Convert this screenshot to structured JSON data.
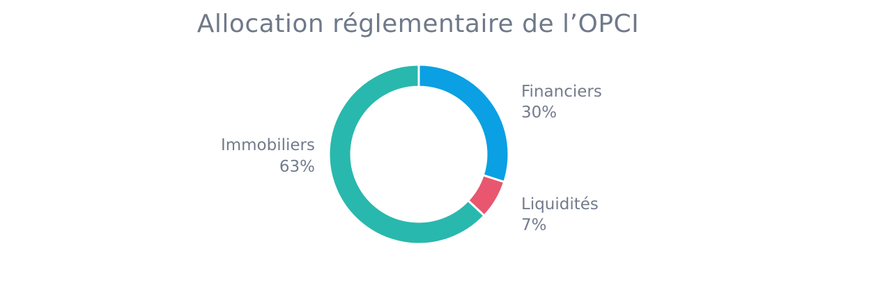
{
  "chart_data": {
    "type": "pie",
    "title": "Allocation réglementaire de l’OPCI",
    "slices": [
      {
        "label": "Financiers",
        "value": 30,
        "value_label": "30%",
        "color": "#0aa0e3"
      },
      {
        "label": "Liquidités",
        "value": 7,
        "value_label": "7%",
        "color": "#e8566f"
      },
      {
        "label": "Immobiliers",
        "value": 63,
        "value_label": "63%",
        "color": "#29b8ad"
      }
    ],
    "donut": true,
    "start": "top",
    "direction": "clockwise"
  }
}
